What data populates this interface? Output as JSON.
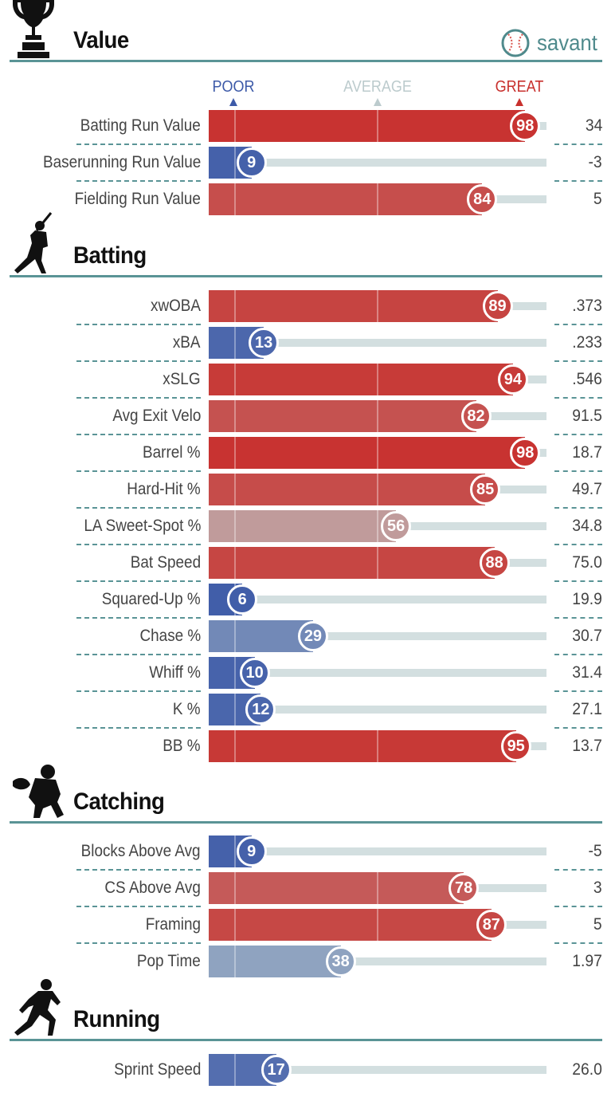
{
  "brand": {
    "text": "savant",
    "icon": "baseball-icon"
  },
  "scale": {
    "poor": "POOR",
    "average": "AVERAGE",
    "great": "GREAT"
  },
  "chart_data": {
    "type": "bar",
    "title": "",
    "xlim": [
      0,
      100
    ],
    "percentile_colors": {
      "poor": "#3d5aa8",
      "average": "#bccbcd",
      "great": "#c8302d"
    },
    "sections": [
      {
        "title": "Value",
        "icon": "trophy-icon",
        "metrics": [
          {
            "label": "Batting Run Value",
            "percentile": 98,
            "value": "34"
          },
          {
            "label": "Baserunning Run Value",
            "percentile": 9,
            "value": "-3"
          },
          {
            "label": "Fielding Run Value",
            "percentile": 84,
            "value": "5"
          }
        ]
      },
      {
        "title": "Batting",
        "icon": "batter-icon",
        "metrics": [
          {
            "label": "xwOBA",
            "percentile": 89,
            "value": ".373"
          },
          {
            "label": "xBA",
            "percentile": 13,
            "value": ".233"
          },
          {
            "label": "xSLG",
            "percentile": 94,
            "value": ".546"
          },
          {
            "label": "Avg Exit Velo",
            "percentile": 82,
            "value": "91.5"
          },
          {
            "label": "Barrel %",
            "percentile": 98,
            "value": "18.7"
          },
          {
            "label": "Hard-Hit %",
            "percentile": 85,
            "value": "49.7"
          },
          {
            "label": "LA Sweet-Spot %",
            "percentile": 56,
            "value": "34.8"
          },
          {
            "label": "Bat Speed",
            "percentile": 88,
            "value": "75.0"
          },
          {
            "label": "Squared-Up %",
            "percentile": 6,
            "value": "19.9"
          },
          {
            "label": "Chase %",
            "percentile": 29,
            "value": "30.7"
          },
          {
            "label": "Whiff %",
            "percentile": 10,
            "value": "31.4"
          },
          {
            "label": "K %",
            "percentile": 12,
            "value": "27.1"
          },
          {
            "label": "BB %",
            "percentile": 95,
            "value": "13.7"
          }
        ]
      },
      {
        "title": "Catching",
        "icon": "catcher-icon",
        "metrics": [
          {
            "label": "Blocks Above Avg",
            "percentile": 9,
            "value": "-5"
          },
          {
            "label": "CS Above Avg",
            "percentile": 78,
            "value": "3"
          },
          {
            "label": "Framing",
            "percentile": 87,
            "value": "5"
          },
          {
            "label": "Pop Time",
            "percentile": 38,
            "value": "1.97"
          }
        ]
      },
      {
        "title": "Running",
        "icon": "runner-icon",
        "metrics": [
          {
            "label": "Sprint Speed",
            "percentile": 17,
            "value": "26.0"
          }
        ]
      }
    ]
  }
}
